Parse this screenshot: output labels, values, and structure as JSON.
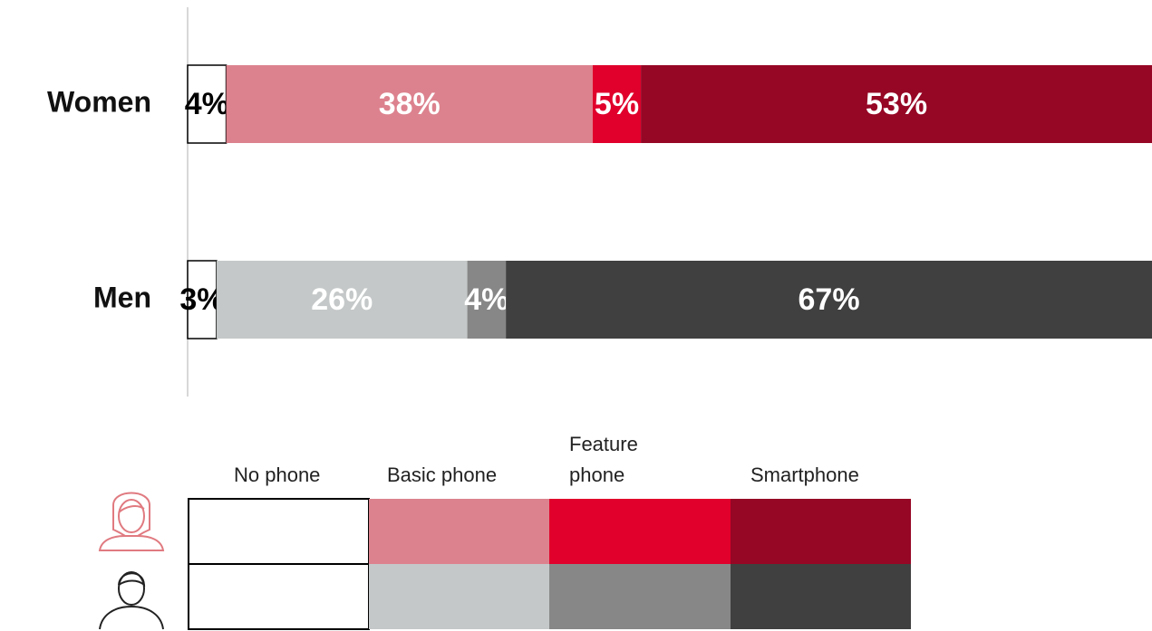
{
  "chart_data": {
    "type": "stacked-bar-horizontal",
    "categories": [
      "Women",
      "Men"
    ],
    "xlim": [
      0,
      100
    ],
    "series": [
      {
        "name": "No phone",
        "colors": [
          "#ffffff",
          "#ffffff"
        ],
        "label_color": "#000000",
        "values": [
          4,
          3
        ],
        "value_labels": [
          "4%",
          "3%"
        ]
      },
      {
        "name": "Basic phone",
        "colors": [
          "#dc828e",
          "#c5c8c8"
        ],
        "label_color": "#ffffff",
        "values": [
          38,
          26
        ],
        "value_labels": [
          "38%",
          "26%"
        ]
      },
      {
        "name": "Feature phone",
        "colors": [
          "#e0002b",
          "#878787"
        ],
        "label_color": "#ffffff",
        "values": [
          5,
          4
        ],
        "value_labels": [
          "5%",
          "4%"
        ]
      },
      {
        "name": "Smartphone",
        "colors": [
          "#960625",
          "#404040"
        ],
        "label_color": "#ffffff",
        "values": [
          53,
          67
        ],
        "value_labels": [
          "53%",
          "67%"
        ]
      }
    ]
  }
}
